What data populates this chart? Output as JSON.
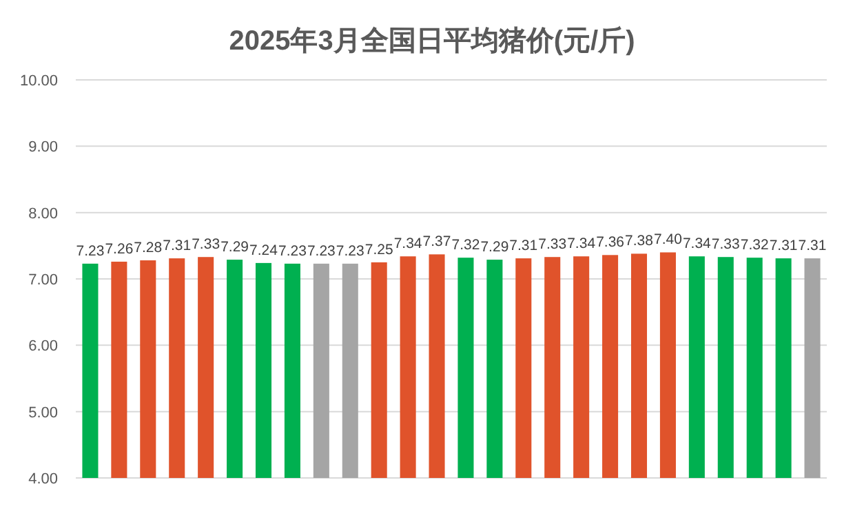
{
  "chart_data": {
    "type": "bar",
    "title": "2025年3月全国日平均猪价(元/斤)",
    "categories": [
      null,
      null,
      null,
      null,
      null,
      null,
      null,
      null,
      null,
      null,
      null,
      null,
      null,
      null,
      null,
      null,
      null,
      null,
      null,
      null,
      null,
      null,
      null,
      null,
      null,
      null
    ],
    "values": [
      7.23,
      7.26,
      7.28,
      7.31,
      7.33,
      7.29,
      7.24,
      7.23,
      7.23,
      7.23,
      7.25,
      7.34,
      7.37,
      7.32,
      7.29,
      7.31,
      7.33,
      7.34,
      7.36,
      7.38,
      7.4,
      7.34,
      7.33,
      7.32,
      7.31,
      7.31
    ],
    "value_labels": [
      "7.23",
      "7.26",
      "7.28",
      "7.31",
      "7.33",
      "7.29",
      "7.24",
      "7.23",
      "7.23",
      "7.23",
      "7.25",
      "7.34",
      "7.37",
      "7.32",
      "7.29",
      "7.31",
      "7.33",
      "7.34",
      "7.36",
      "7.38",
      "7.40",
      "7.34",
      "7.33",
      "7.32",
      "7.31",
      "7.31"
    ],
    "colors": [
      "#00b050",
      "#e0532b",
      "#e0532b",
      "#e0532b",
      "#e0532b",
      "#00b050",
      "#00b050",
      "#00b050",
      "#a5a5a5",
      "#a5a5a5",
      "#e0532b",
      "#e0532b",
      "#e0532b",
      "#00b050",
      "#00b050",
      "#e0532b",
      "#e0532b",
      "#e0532b",
      "#e0532b",
      "#e0532b",
      "#e0532b",
      "#00b050",
      "#00b050",
      "#00b050",
      "#00b050",
      "#a5a5a5"
    ],
    "ylim": [
      4,
      10
    ],
    "yticks": [
      {
        "value": 4,
        "label": "4.00"
      },
      {
        "value": 5,
        "label": "5.00"
      },
      {
        "value": 6,
        "label": "6.00"
      },
      {
        "value": 7,
        "label": "7.00"
      },
      {
        "value": 8,
        "label": "8.00"
      },
      {
        "value": 9,
        "label": "9.00"
      },
      {
        "value": 10,
        "label": "10.00"
      }
    ],
    "grid": "y"
  }
}
